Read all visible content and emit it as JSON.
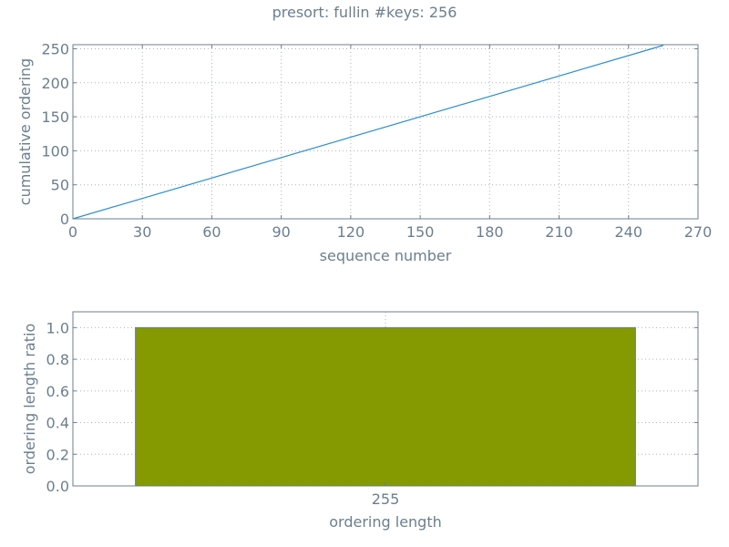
{
  "figure": {
    "title": "presort: fullin #keys: 256"
  },
  "colors": {
    "line": "#2b8fd0",
    "bar": "#859900",
    "axis": "#6b7f8e",
    "grid": "#aab4bc"
  },
  "chart_data": [
    {
      "type": "line",
      "xlabel": "sequence number",
      "ylabel": "cumulative ordering",
      "xlim": [
        0,
        270
      ],
      "ylim": [
        0,
        256
      ],
      "xticks": [
        0,
        30,
        60,
        90,
        120,
        150,
        180,
        210,
        240,
        270
      ],
      "yticks": [
        0,
        50,
        100,
        150,
        200,
        250
      ],
      "grid": true,
      "series": [
        {
          "x": [
            0,
            255
          ],
          "y": [
            0,
            255
          ]
        }
      ]
    },
    {
      "type": "bar",
      "xlabel": "ordering length",
      "ylabel": "ordering length ratio",
      "categories": [
        "255"
      ],
      "values": [
        1.0
      ],
      "ylim": [
        0,
        1.1
      ],
      "yticks": [
        "0.0",
        "0.2",
        "0.4",
        "0.6",
        "0.8",
        "1.0"
      ],
      "grid": true
    }
  ]
}
